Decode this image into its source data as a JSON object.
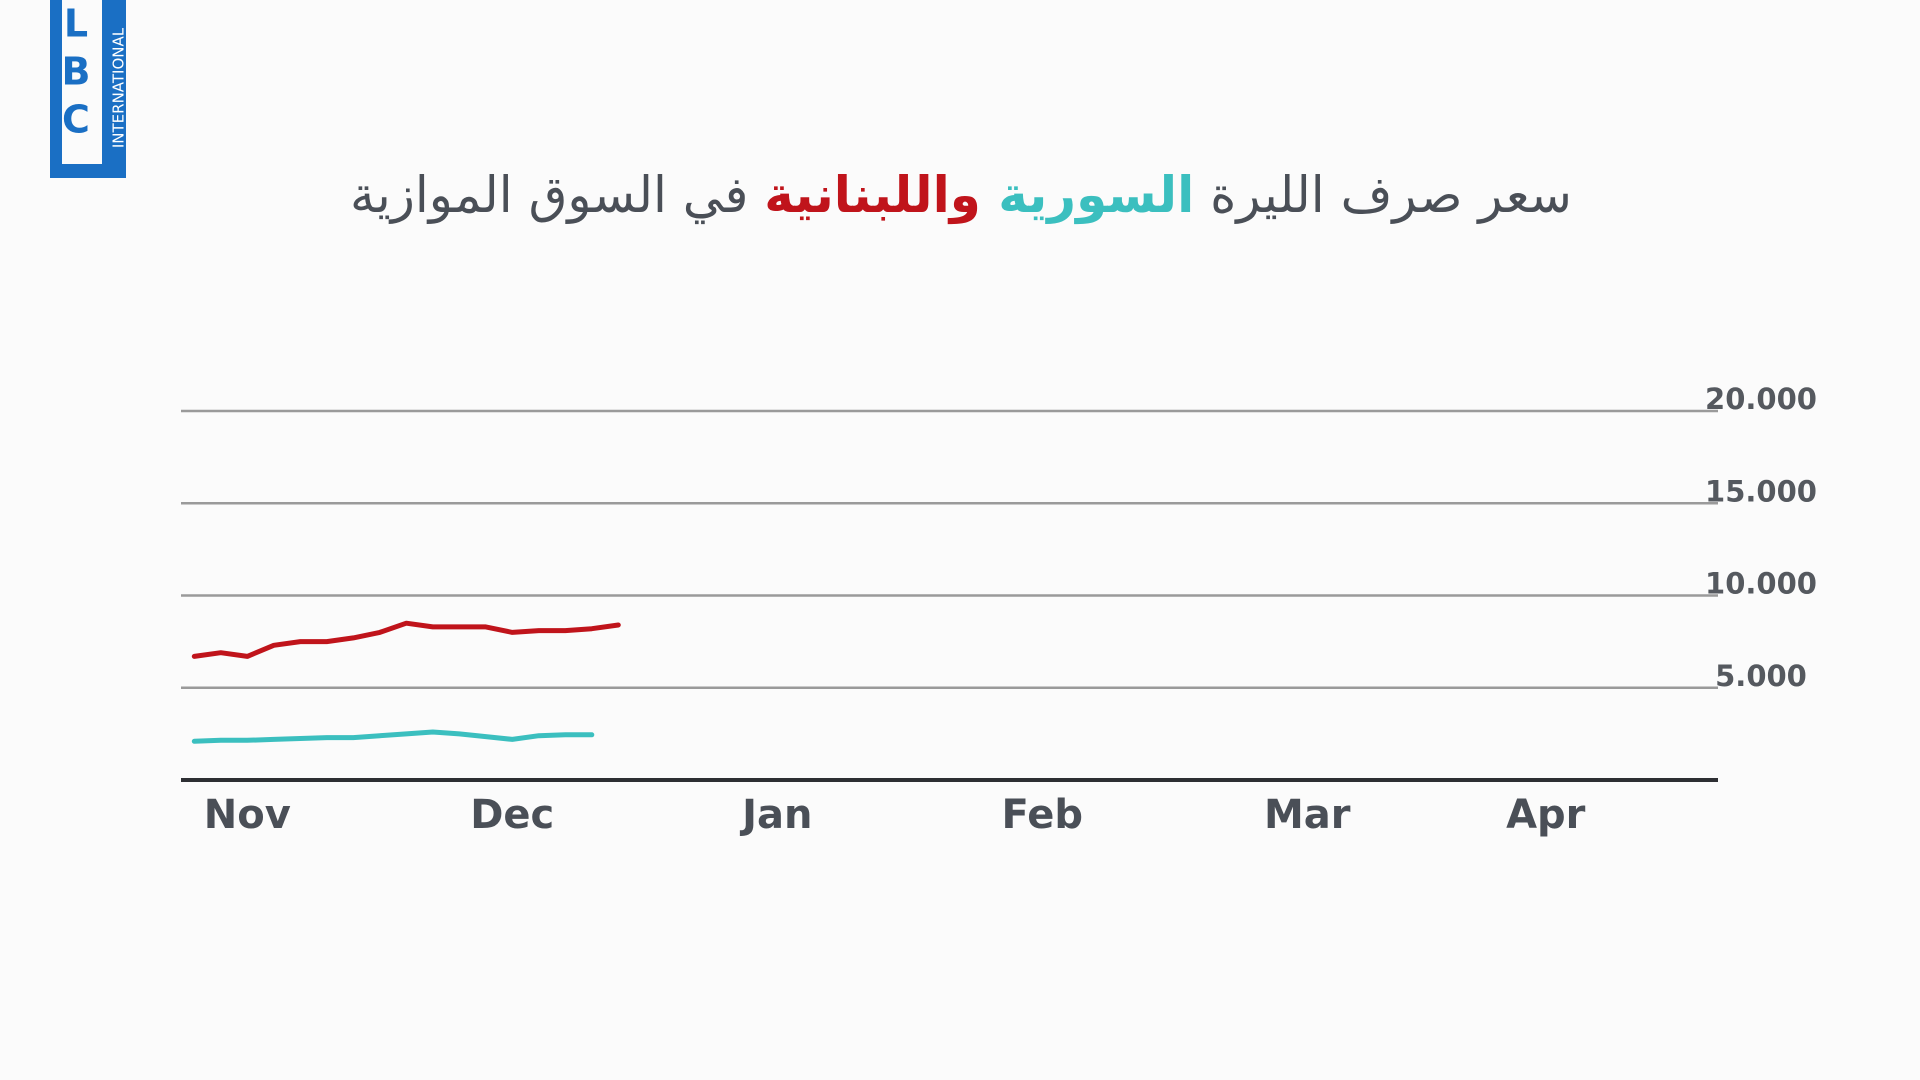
{
  "logo": {
    "letters": [
      "L",
      "B",
      "C"
    ],
    "subtitle": "INTERNATIONAL"
  },
  "chart_data": {
    "type": "line",
    "title_parts": [
      {
        "text": "سعر صرف الليرة ",
        "color": "#4a4f57"
      },
      {
        "text": "السورية",
        "color": "#3bbfbf"
      },
      {
        "text": " واللبنانية",
        "color": "#c0141b"
      },
      {
        "text": " في السوق الموازية",
        "color": "#4a4f57"
      }
    ],
    "categories": [
      null,
      null,
      "Nov",
      null,
      null,
      null,
      null,
      null,
      null,
      null,
      null,
      null,
      "Dec",
      null,
      null,
      null,
      null,
      null,
      null,
      null,
      null,
      null,
      "Jan",
      null,
      null,
      null,
      null,
      null,
      null,
      null,
      null,
      null,
      "Feb",
      null,
      null,
      null,
      null,
      null,
      null,
      null,
      null,
      null,
      "Mar",
      null,
      null,
      null,
      null,
      null,
      null,
      null,
      null,
      "Apr",
      null,
      null,
      null,
      null,
      null,
      null
    ],
    "series": [
      {
        "color": "#c0141b",
        "values": [
          6700,
          6900,
          6700,
          7300,
          7500,
          7500,
          7700,
          8000,
          8500,
          8300,
          8300,
          8300,
          8000,
          8100,
          8100,
          8200,
          8400,
          null,
          null,
          null,
          null,
          null,
          null,
          null,
          null,
          null,
          null,
          null,
          null,
          null,
          null,
          null,
          null,
          null,
          null,
          null,
          null,
          null,
          null,
          null,
          null,
          null,
          null,
          null,
          null,
          null,
          null,
          null,
          null,
          null,
          null,
          null,
          null,
          null,
          null,
          null,
          null,
          null
        ]
      },
      {
        "color": "#3bbfbf",
        "values": [
          2100,
          2150,
          2150,
          2200,
          2250,
          2300,
          2300,
          2400,
          2500,
          2600,
          2500,
          2350,
          2200,
          2400,
          2450,
          2450,
          null,
          null,
          null,
          null,
          null,
          null,
          null,
          null,
          null,
          null,
          null,
          null,
          null,
          null,
          null,
          null,
          null,
          null,
          null,
          null,
          null,
          null,
          null,
          null,
          null,
          null,
          null,
          null,
          null,
          null,
          null,
          null,
          null,
          null,
          null,
          null,
          null,
          null,
          null,
          null,
          null,
          null
        ]
      }
    ],
    "ylim": [
      0,
      20000
    ],
    "yticks": [
      {
        "value": 5000,
        "label": "5.000"
      },
      {
        "value": 10000,
        "label": "10.000"
      },
      {
        "value": 15000,
        "label": "15.000"
      },
      {
        "value": 20000,
        "label": "20.000"
      }
    ],
    "grid": true
  }
}
